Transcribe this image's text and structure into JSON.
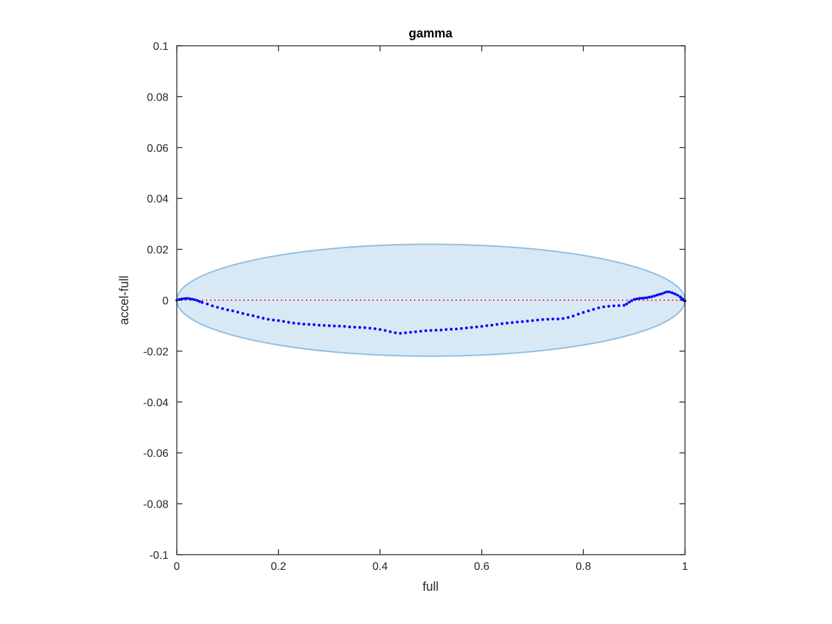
{
  "chart_data": {
    "type": "scatter",
    "title": "gamma",
    "xlabel": "full",
    "ylabel": "accel-full",
    "xlim": [
      0,
      1
    ],
    "ylim": [
      -0.1,
      0.1
    ],
    "xticks": [
      0,
      0.2,
      0.4,
      0.6,
      0.8,
      1
    ],
    "xtick_labels": [
      "0",
      "0.2",
      "0.4",
      "0.6",
      "0.8",
      "1"
    ],
    "yticks": [
      -0.1,
      -0.08,
      -0.06,
      -0.04,
      -0.02,
      0,
      0.02,
      0.04,
      0.06,
      0.08,
      0.1
    ],
    "ytick_labels": [
      "-0.1",
      "-0.08",
      "-0.06",
      "-0.04",
      "-0.02",
      "0",
      "0.02",
      "0.04",
      "0.06",
      "0.08",
      "0.1"
    ],
    "grid": false,
    "reference_line": {
      "y": 0,
      "style": "dotted",
      "color": "#ff0000"
    },
    "ellipse": {
      "center": [
        0.5,
        0
      ],
      "x_radius": 0.5,
      "y_radius": 0.022,
      "fill": "#d9e8f5",
      "stroke": "#8fbfe0"
    },
    "series": [
      {
        "color": "#0000ff",
        "points": [
          [
            0.0,
            0.0
          ],
          [
            0.005,
            0.0003
          ],
          [
            0.01,
            0.0005
          ],
          [
            0.015,
            0.0006
          ],
          [
            0.02,
            0.0007
          ],
          [
            0.025,
            0.0006
          ],
          [
            0.03,
            0.0004
          ],
          [
            0.035,
            0.0002
          ],
          [
            0.04,
            -0.0001
          ],
          [
            0.045,
            -0.0005
          ],
          [
            0.05,
            -0.0009
          ],
          [
            0.06,
            -0.0015
          ],
          [
            0.07,
            -0.0022
          ],
          [
            0.08,
            -0.0028
          ],
          [
            0.09,
            -0.0033
          ],
          [
            0.1,
            -0.0038
          ],
          [
            0.11,
            -0.0042
          ],
          [
            0.12,
            -0.0047
          ],
          [
            0.13,
            -0.0052
          ],
          [
            0.14,
            -0.0057
          ],
          [
            0.15,
            -0.0061
          ],
          [
            0.16,
            -0.0066
          ],
          [
            0.17,
            -0.0071
          ],
          [
            0.18,
            -0.0075
          ],
          [
            0.19,
            -0.0078
          ],
          [
            0.2,
            -0.008
          ],
          [
            0.21,
            -0.0083
          ],
          [
            0.22,
            -0.0087
          ],
          [
            0.23,
            -0.009
          ],
          [
            0.24,
            -0.0092
          ],
          [
            0.25,
            -0.0094
          ],
          [
            0.26,
            -0.0095
          ],
          [
            0.27,
            -0.0096
          ],
          [
            0.28,
            -0.0098
          ],
          [
            0.29,
            -0.0099
          ],
          [
            0.3,
            -0.01
          ],
          [
            0.31,
            -0.0101
          ],
          [
            0.32,
            -0.0102
          ],
          [
            0.33,
            -0.0103
          ],
          [
            0.34,
            -0.0105
          ],
          [
            0.35,
            -0.0106
          ],
          [
            0.36,
            -0.0107
          ],
          [
            0.37,
            -0.0108
          ],
          [
            0.38,
            -0.011
          ],
          [
            0.39,
            -0.0112
          ],
          [
            0.4,
            -0.0115
          ],
          [
            0.41,
            -0.0119
          ],
          [
            0.42,
            -0.0124
          ],
          [
            0.43,
            -0.0128
          ],
          [
            0.44,
            -0.013
          ],
          [
            0.45,
            -0.0128
          ],
          [
            0.46,
            -0.0126
          ],
          [
            0.47,
            -0.0124
          ],
          [
            0.48,
            -0.0122
          ],
          [
            0.49,
            -0.012
          ],
          [
            0.5,
            -0.0119
          ],
          [
            0.51,
            -0.0118
          ],
          [
            0.52,
            -0.0117
          ],
          [
            0.53,
            -0.0115
          ],
          [
            0.54,
            -0.0114
          ],
          [
            0.55,
            -0.0113
          ],
          [
            0.56,
            -0.0111
          ],
          [
            0.57,
            -0.0109
          ],
          [
            0.58,
            -0.0107
          ],
          [
            0.59,
            -0.0105
          ],
          [
            0.6,
            -0.0103
          ],
          [
            0.61,
            -0.01
          ],
          [
            0.62,
            -0.0098
          ],
          [
            0.63,
            -0.0095
          ],
          [
            0.64,
            -0.0092
          ],
          [
            0.65,
            -0.009
          ],
          [
            0.66,
            -0.0088
          ],
          [
            0.67,
            -0.0086
          ],
          [
            0.68,
            -0.0084
          ],
          [
            0.69,
            -0.0082
          ],
          [
            0.7,
            -0.008
          ],
          [
            0.71,
            -0.0078
          ],
          [
            0.72,
            -0.0076
          ],
          [
            0.73,
            -0.0075
          ],
          [
            0.74,
            -0.0074
          ],
          [
            0.75,
            -0.0074
          ],
          [
            0.76,
            -0.0072
          ],
          [
            0.77,
            -0.0068
          ],
          [
            0.78,
            -0.0062
          ],
          [
            0.79,
            -0.0055
          ],
          [
            0.8,
            -0.0048
          ],
          [
            0.81,
            -0.0042
          ],
          [
            0.82,
            -0.0036
          ],
          [
            0.83,
            -0.003
          ],
          [
            0.84,
            -0.0026
          ],
          [
            0.85,
            -0.0024
          ],
          [
            0.86,
            -0.0022
          ],
          [
            0.87,
            -0.0021
          ],
          [
            0.88,
            -0.002
          ],
          [
            0.885,
            -0.0015
          ],
          [
            0.89,
            -0.0008
          ],
          [
            0.895,
            -0.0002
          ],
          [
            0.9,
            0.0003
          ],
          [
            0.905,
            0.0005
          ],
          [
            0.91,
            0.0007
          ],
          [
            0.915,
            0.0008
          ],
          [
            0.92,
            0.0009
          ],
          [
            0.925,
            0.001
          ],
          [
            0.93,
            0.0012
          ],
          [
            0.935,
            0.0014
          ],
          [
            0.94,
            0.0017
          ],
          [
            0.945,
            0.002
          ],
          [
            0.95,
            0.0023
          ],
          [
            0.955,
            0.0026
          ],
          [
            0.96,
            0.003
          ],
          [
            0.965,
            0.0033
          ],
          [
            0.97,
            0.0032
          ],
          [
            0.975,
            0.0029
          ],
          [
            0.98,
            0.0025
          ],
          [
            0.985,
            0.002
          ],
          [
            0.99,
            0.0014
          ],
          [
            0.993,
            0.0008
          ],
          [
            0.996,
            0.0003
          ],
          [
            0.998,
            -0.0001
          ],
          [
            1.0,
            -0.0003
          ]
        ]
      }
    ]
  }
}
